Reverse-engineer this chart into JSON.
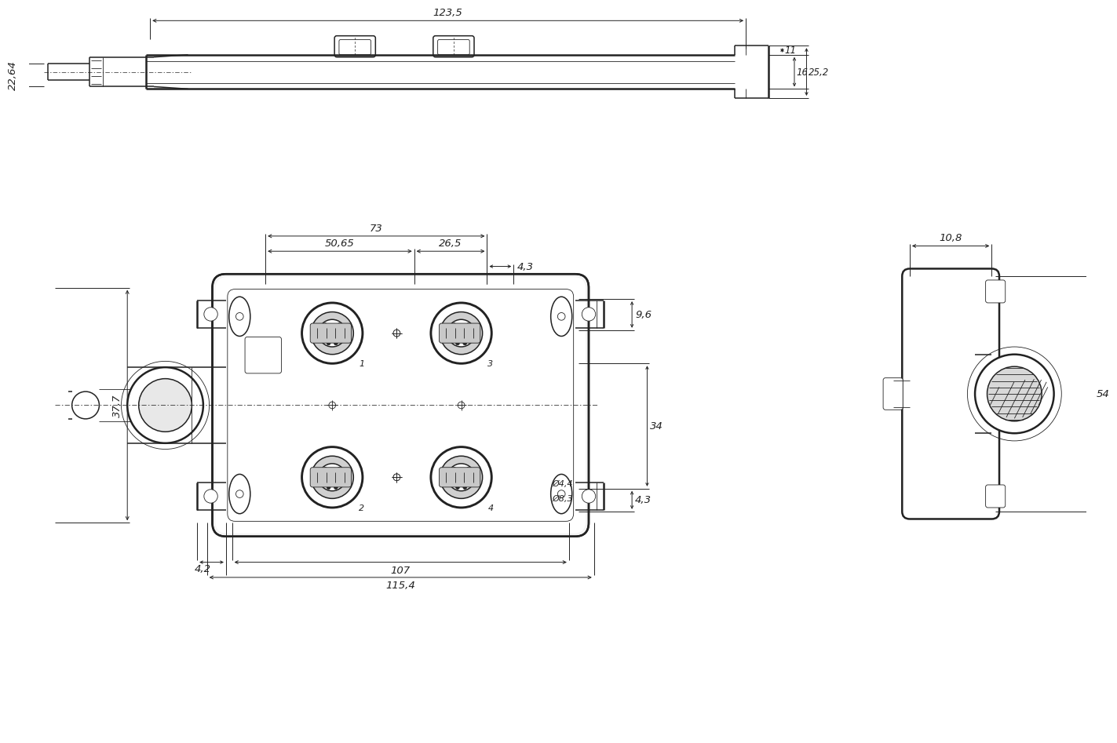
{
  "bg": "#ffffff",
  "lc": "#222222",
  "lw_thick": 1.8,
  "lw_mid": 1.1,
  "lw_thin": 0.6,
  "lw_dim": 0.7,
  "fs_dim": 9.5,
  "fs_small": 8.0,
  "dim_labels": {
    "d123": "123,5",
    "d22": "22,64",
    "d11": "11",
    "d16": "16",
    "d25": "25,2",
    "d73": "73",
    "d50": "50,65",
    "d26": "26,5",
    "d43t": "4,3",
    "d96": "9,6",
    "d34": "34",
    "d377": "37,7",
    "d42": "4,2",
    "d107": "107",
    "d1154": "115,4",
    "d43b": "4,3",
    "phi44": "Ø4,4",
    "phi83": "Ø8,3",
    "d108": "10,8",
    "d54": "54"
  }
}
